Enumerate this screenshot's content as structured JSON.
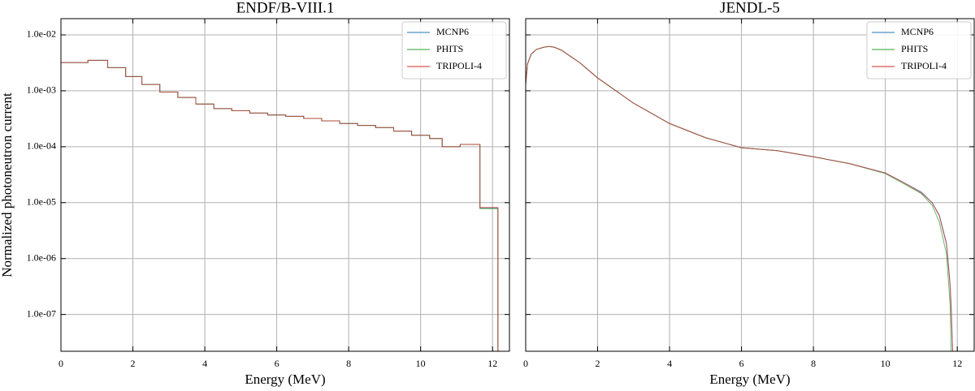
{
  "chart_data": [
    {
      "type": "line",
      "drawstyle": "steps-post",
      "title": "ENDF/B-VIII.1",
      "xlabel": "Energy (MeV)",
      "ylabel": "Normalized photoneutron current",
      "yscale": "log",
      "grid": true,
      "legend": "upper right",
      "xlim": [
        0,
        12.47
      ],
      "xticks": [
        0,
        2,
        4,
        6,
        8,
        10,
        12
      ],
      "ylim": [
        2.2e-08,
        0.0195
      ],
      "yticks": [
        {
          "value": 1e-07,
          "label": "1.0e-07"
        },
        {
          "value": 1e-06,
          "label": "1.0e-06"
        },
        {
          "value": 1e-05,
          "label": "1.0e-05"
        },
        {
          "value": 0.0001,
          "label": "1.0e-04"
        },
        {
          "value": 0.001,
          "label": "1.0e-03"
        },
        {
          "value": 0.01,
          "label": "1.0e-02"
        }
      ],
      "x": [
        0,
        0.75,
        1.3,
        1.8,
        2.25,
        2.75,
        3.25,
        3.75,
        4.25,
        4.75,
        5.25,
        5.75,
        6.25,
        6.75,
        7.25,
        7.75,
        8.25,
        8.75,
        9.25,
        9.75,
        10.25,
        10.6,
        11.1,
        11.65,
        12.1,
        12.15
      ],
      "series": [
        {
          "name": "MCNP6",
          "color": "#1f77b4",
          "values": [
            0.0032,
            0.0035,
            0.0026,
            0.0018,
            0.0013,
            0.00095,
            0.00076,
            0.00058,
            0.00048,
            0.00044,
            0.0004,
            0.00037,
            0.00035,
            0.00032,
            0.00029,
            0.00026,
            0.00024,
            0.00022,
            0.00019,
            0.00016,
            0.00014,
            0.0001,
            0.00011,
            8e-06,
            8e-06,
            1e-08
          ]
        },
        {
          "name": "PHITS",
          "color": "#2ca02c",
          "values": [
            0.0032,
            0.0035,
            0.0026,
            0.0018,
            0.0013,
            0.00095,
            0.00076,
            0.00058,
            0.00048,
            0.00044,
            0.0004,
            0.00037,
            0.00035,
            0.00032,
            0.00029,
            0.00026,
            0.00024,
            0.00022,
            0.00019,
            0.00016,
            0.00014,
            0.0001,
            0.00011,
            7.8e-06,
            7.8e-06,
            1e-08
          ]
        },
        {
          "name": "TRIPOLI-4",
          "color": "#d62728",
          "values": [
            0.0032,
            0.0035,
            0.0026,
            0.0018,
            0.0013,
            0.00095,
            0.00076,
            0.00058,
            0.00048,
            0.00044,
            0.0004,
            0.00037,
            0.00035,
            0.00032,
            0.00029,
            0.00026,
            0.00024,
            0.00022,
            0.00019,
            0.00016,
            0.00014,
            0.0001,
            0.00011,
            8.2e-06,
            8.2e-06,
            1e-08
          ]
        }
      ]
    },
    {
      "type": "line",
      "title": "JENDL-5",
      "xlabel": "Energy (MeV)",
      "yscale": "log",
      "sharey": true,
      "grid": true,
      "legend": "upper right",
      "xlim": [
        0,
        12.47
      ],
      "xticks": [
        0,
        2,
        4,
        6,
        8,
        10,
        12
      ],
      "x": [
        0,
        0.05,
        0.15,
        0.3,
        0.5,
        0.65,
        0.8,
        1.0,
        1.25,
        1.5,
        2,
        3,
        4,
        5,
        6,
        7,
        8,
        9,
        10,
        10.5,
        11,
        11.3,
        11.5,
        11.7,
        11.8,
        11.83,
        11.87,
        11.9
      ],
      "series": [
        {
          "name": "MCNP6",
          "color": "#1f77b4",
          "values": [
            0.0013,
            0.003,
            0.0045,
            0.0055,
            0.006,
            0.0062,
            0.006,
            0.0053,
            0.0041,
            0.0032,
            0.0017,
            0.0006,
            0.00026,
            0.000145,
            9.6e-05,
            8.5e-05,
            6.6e-05,
            5e-05,
            3.4e-05,
            2.3e-05,
            1.55e-05,
            1e-05,
            6e-06,
            1.9e-06,
            3.6e-07,
            1.5e-07,
            2.2e-08,
            1e-08
          ]
        },
        {
          "name": "PHITS",
          "color": "#2ca02c",
          "values": [
            0.0013,
            0.003,
            0.0045,
            0.0055,
            0.006,
            0.0062,
            0.006,
            0.0053,
            0.0041,
            0.0032,
            0.0017,
            0.0006,
            0.00026,
            0.000145,
            9.6e-05,
            8.5e-05,
            6.6e-05,
            5e-05,
            3.3e-05,
            2.2e-05,
            1.45e-05,
            9e-06,
            4.5e-06,
            1.2e-06,
            1.5e-07,
            2e-08,
            1e-08,
            1e-08
          ]
        },
        {
          "name": "TRIPOLI-4",
          "color": "#d62728",
          "values": [
            0.0013,
            0.003,
            0.0045,
            0.0055,
            0.006,
            0.0062,
            0.006,
            0.0053,
            0.0041,
            0.0032,
            0.0017,
            0.0006,
            0.00026,
            0.000145,
            9.6e-05,
            8.5e-05,
            6.6e-05,
            5e-05,
            3.4e-05,
            2.3e-05,
            1.5e-05,
            1e-05,
            5.8e-06,
            1.8e-06,
            3.2e-07,
            1.2e-07,
            2.2e-08,
            1e-08
          ]
        }
      ]
    }
  ]
}
